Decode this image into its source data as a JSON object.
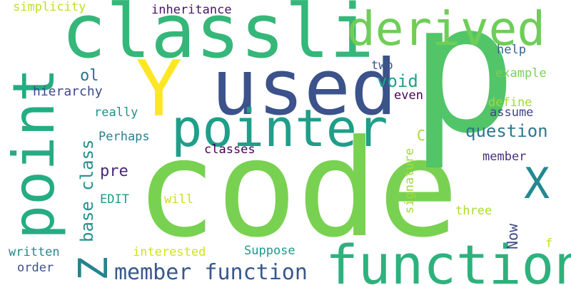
{
  "words": [
    {
      "text": "code",
      "color": "#79d151"
    },
    {
      "text": "p",
      "color": "#52c569"
    },
    {
      "text": "used",
      "color": "#3b528b"
    },
    {
      "text": "classli",
      "color": "#35b779"
    },
    {
      "text": "function",
      "color": "#2db27d"
    },
    {
      "text": "pointer",
      "color": "#1f9e89"
    },
    {
      "text": "derived",
      "color": "#6ece58"
    },
    {
      "text": "point",
      "color": "#25ac82"
    },
    {
      "text": "Y",
      "color": "#fde725"
    },
    {
      "text": "Z",
      "color": "#26828e"
    },
    {
      "text": "X",
      "color": "#23898e"
    },
    {
      "text": "member function",
      "color": "#38588c"
    },
    {
      "text": "question",
      "color": "#2a788e"
    },
    {
      "text": "base class",
      "color": "#21918c"
    },
    {
      "text": "void",
      "color": "#1fa287"
    },
    {
      "text": "pre",
      "color": "#482878"
    },
    {
      "text": "ol",
      "color": "#2c728e"
    },
    {
      "text": "hierarchy",
      "color": "#3e4989"
    },
    {
      "text": "simplicity",
      "color": "#bddf26"
    },
    {
      "text": "inheritance",
      "color": "#471365"
    },
    {
      "text": "two",
      "color": "#3b528b"
    },
    {
      "text": "help",
      "color": "#33638d"
    },
    {
      "text": "example",
      "color": "#7ad151"
    },
    {
      "text": "even",
      "color": "#440154"
    },
    {
      "text": "define",
      "color": "#a0da39"
    },
    {
      "text": "assume",
      "color": "#414487"
    },
    {
      "text": "really",
      "color": "#218f8d"
    },
    {
      "text": "Perhaps",
      "color": "#27808e"
    },
    {
      "text": "C",
      "color": "#a5db36"
    },
    {
      "text": "classes",
      "color": "#440154"
    },
    {
      "text": "member",
      "color": "#46327e"
    },
    {
      "text": "signature",
      "color": "#a2da37"
    },
    {
      "text": "EDIT",
      "color": "#1f9a8a"
    },
    {
      "text": "will",
      "color": "#c8e020"
    },
    {
      "text": "three",
      "color": "#addc30"
    },
    {
      "text": "Now",
      "color": "#3e4a89"
    },
    {
      "text": "f",
      "color": "#c2df23"
    },
    {
      "text": "written",
      "color": "#24878e"
    },
    {
      "text": "interested",
      "color": "#d2e21b"
    },
    {
      "text": "Suppose",
      "color": "#1f988b"
    },
    {
      "text": "order",
      "color": "#3b528b"
    }
  ]
}
